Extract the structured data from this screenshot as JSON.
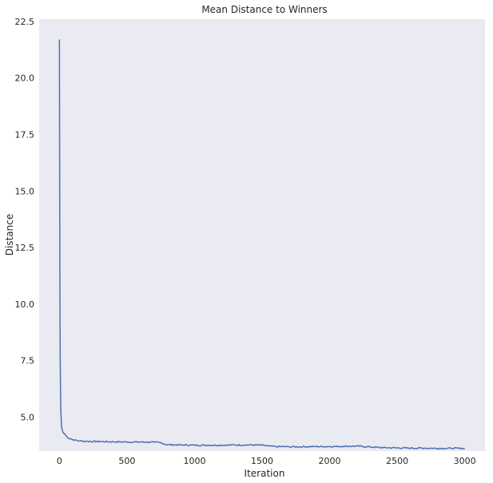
{
  "chart_data": {
    "type": "line",
    "title": "Mean Distance to Winners",
    "xlabel": "Iteration",
    "ylabel": "Distance",
    "xlim": [
      -150,
      3150
    ],
    "ylim": [
      3.5,
      22.6
    ],
    "grid": false,
    "background": "#eaeaf2",
    "line_color": "#4c72b0",
    "x_ticks": [
      0,
      500,
      1000,
      1500,
      2000,
      2500,
      3000
    ],
    "x_tick_labels": [
      "0",
      "500",
      "1000",
      "1500",
      "2000",
      "2500",
      "3000"
    ],
    "y_ticks": [
      5.0,
      7.5,
      10.0,
      12.5,
      15.0,
      17.5,
      20.0,
      22.5
    ],
    "y_tick_labels": [
      "5.0",
      "7.5",
      "10.0",
      "12.5",
      "15.0",
      "17.5",
      "20.0",
      "22.5"
    ],
    "series": [
      {
        "x": [
          0,
          2,
          4,
          6,
          8,
          10,
          13,
          16,
          20,
          25,
          30,
          40,
          60,
          80,
          100,
          150,
          200,
          300,
          400,
          500,
          600,
          700,
          750,
          780,
          800,
          900,
          1000,
          1100,
          1200,
          1300,
          1400,
          1500,
          1550,
          1600,
          1700,
          1800,
          1900,
          2000,
          2100,
          2200,
          2300,
          2400,
          2500,
          2600,
          2700,
          2800,
          2900,
          3000
        ],
        "values": [
          21.7,
          15.0,
          10.0,
          7.5,
          6.2,
          5.4,
          4.9,
          4.6,
          4.45,
          4.35,
          4.3,
          4.25,
          4.1,
          4.05,
          4.0,
          3.95,
          3.93,
          3.92,
          3.91,
          3.9,
          3.9,
          3.89,
          3.88,
          3.8,
          3.78,
          3.77,
          3.76,
          3.76,
          3.76,
          3.77,
          3.77,
          3.76,
          3.72,
          3.7,
          3.69,
          3.69,
          3.7,
          3.7,
          3.71,
          3.72,
          3.68,
          3.65,
          3.64,
          3.63,
          3.63,
          3.62,
          3.62,
          3.62
        ]
      }
    ]
  }
}
